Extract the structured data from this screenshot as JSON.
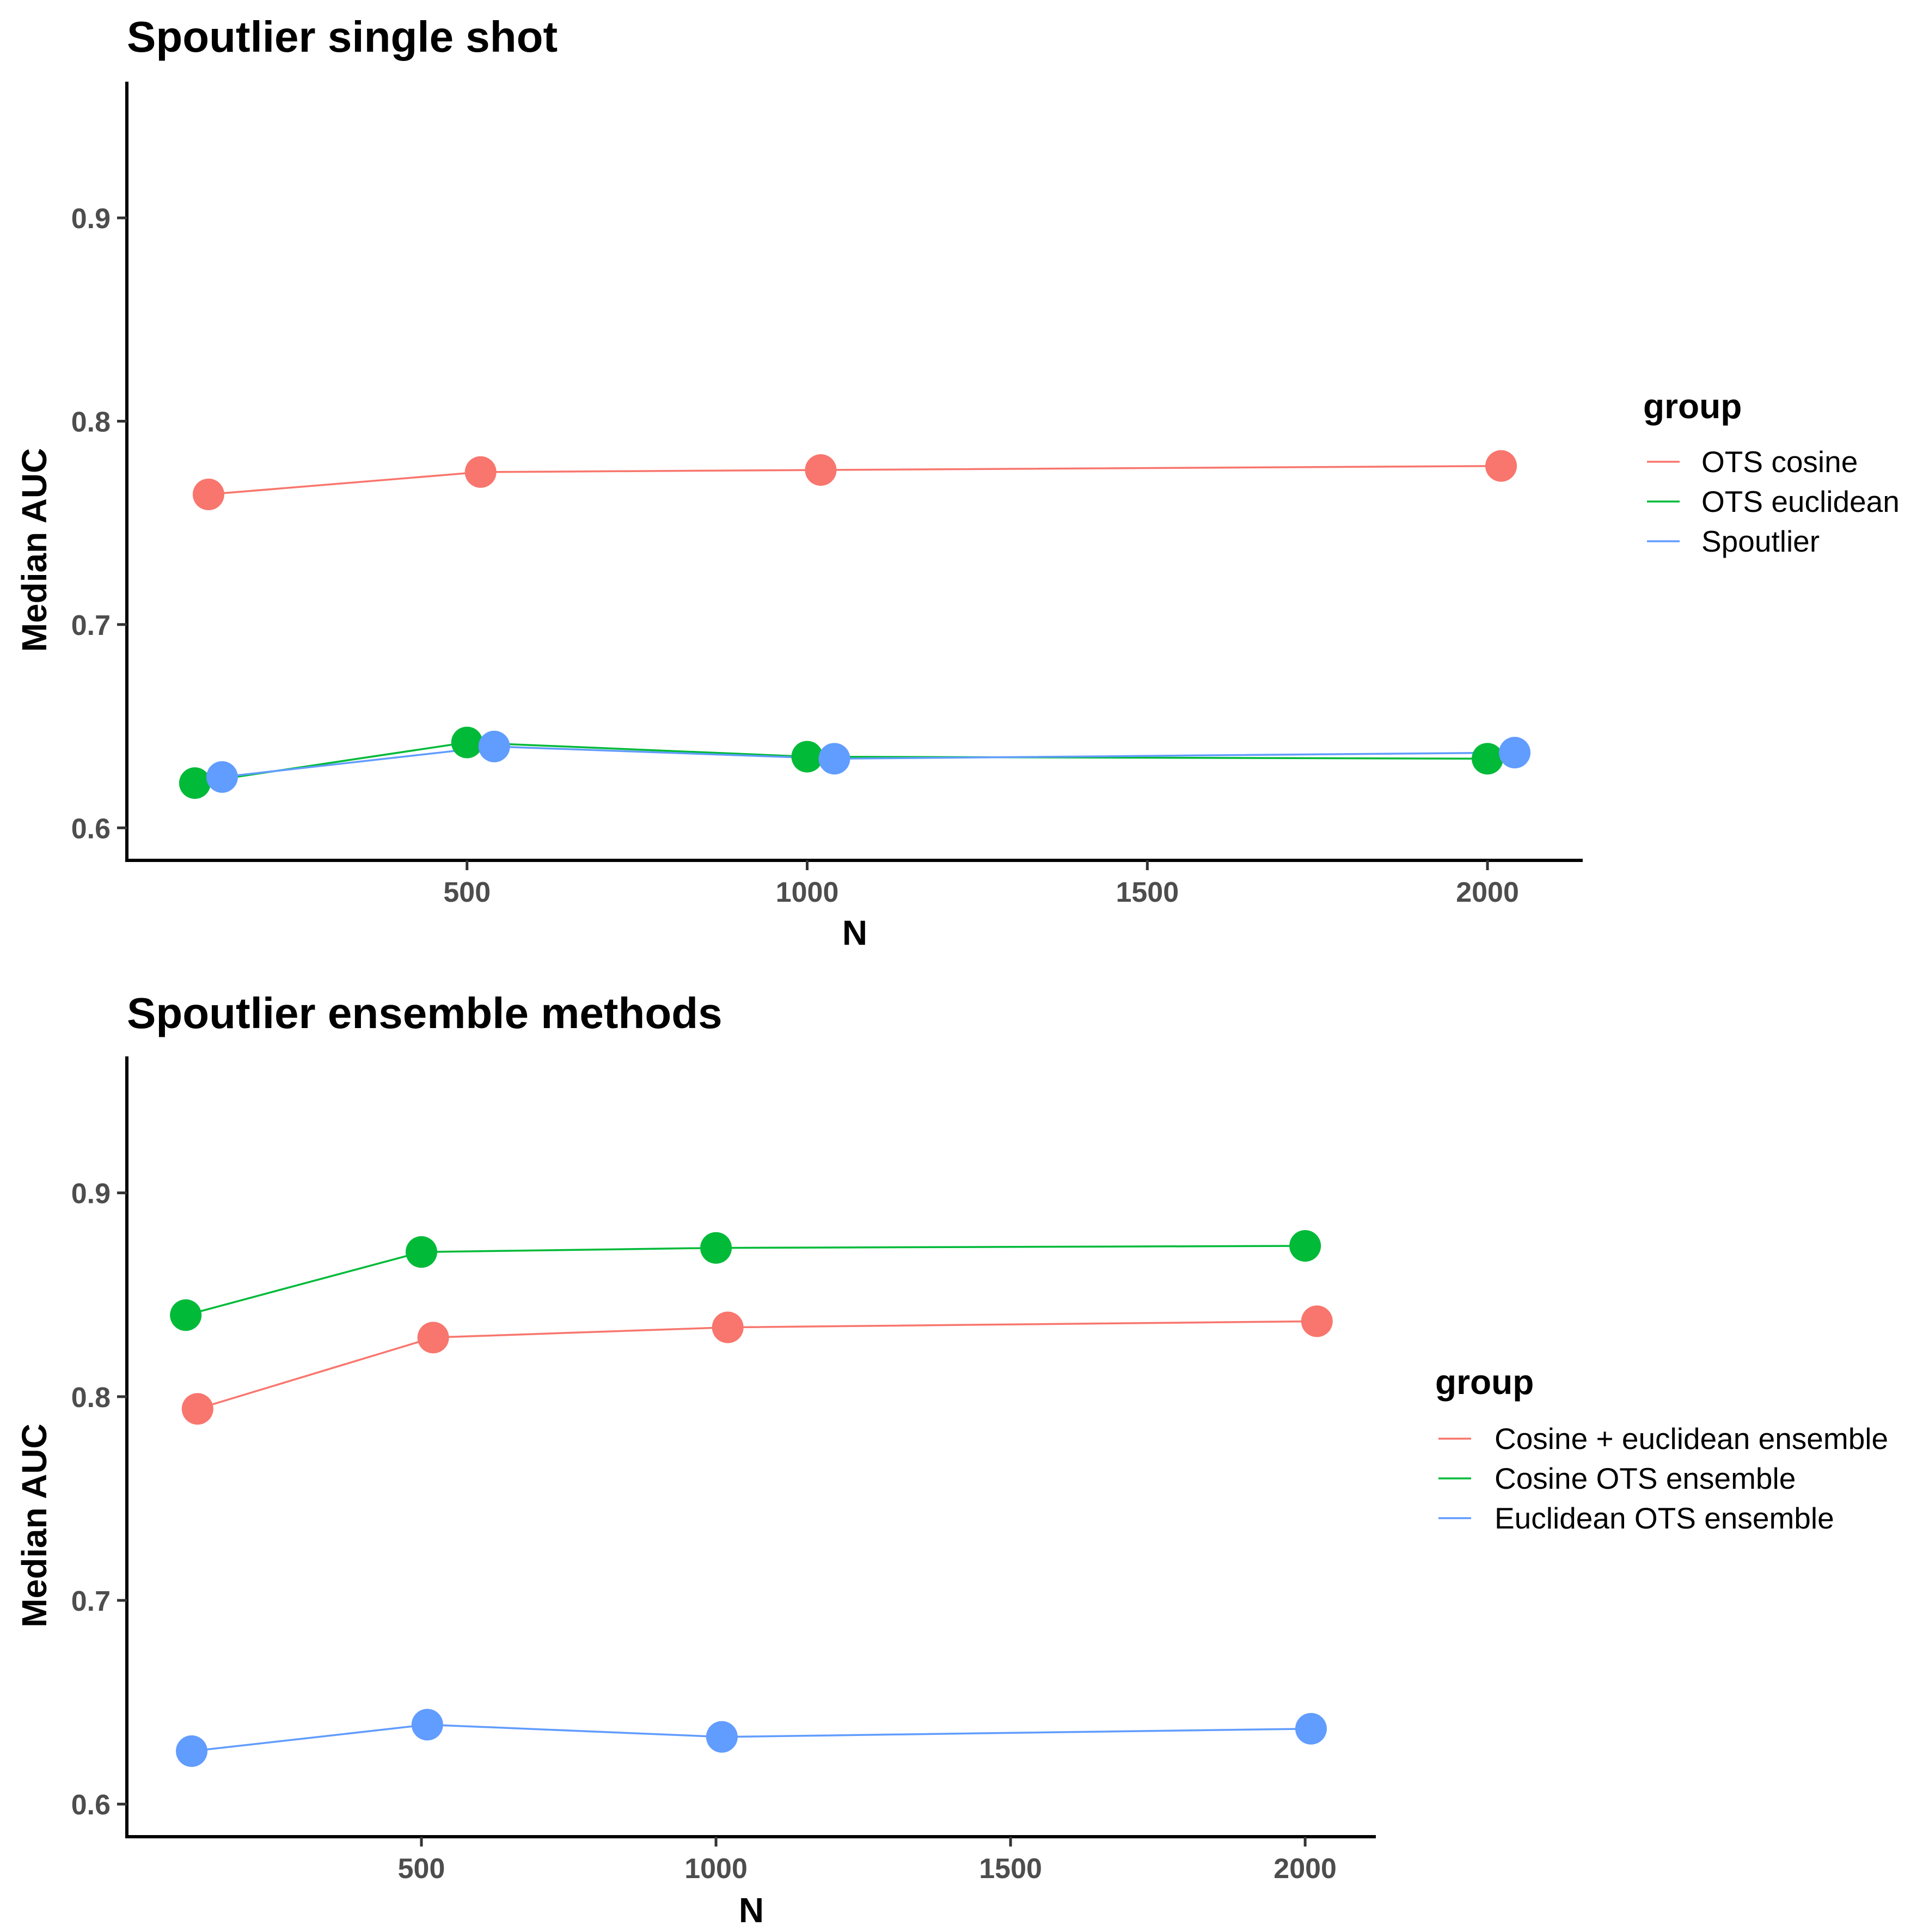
{
  "chart_data": [
    {
      "type": "line",
      "title": "Spoutlier single shot",
      "xlabel": "N",
      "ylabel": "Median AUC",
      "xticks": [
        500,
        1000,
        1500,
        2000
      ],
      "yticks": [
        0.6,
        0.7,
        0.8,
        0.9
      ],
      "xlim": [
        0,
        2140
      ],
      "ylim": [
        0.584,
        0.967
      ],
      "grid": false,
      "legend": {
        "title": "group",
        "position": "right"
      },
      "series": [
        {
          "name": "OTS cosine",
          "color": "#F8766D",
          "x": [
            120,
            520,
            1020,
            2020
          ],
          "y": [
            0.764,
            0.775,
            0.776,
            0.778
          ]
        },
        {
          "name": "OTS euclidean",
          "color": "#00BA38",
          "x": [
            100,
            500,
            1000,
            2000
          ],
          "y": [
            0.622,
            0.642,
            0.635,
            0.634
          ]
        },
        {
          "name": "Spoutlier",
          "color": "#619CFF",
          "x": [
            140,
            540,
            1040,
            2040
          ],
          "y": [
            0.625,
            0.64,
            0.634,
            0.637
          ]
        }
      ]
    },
    {
      "type": "line",
      "title": "Spoutlier ensemble methods",
      "xlabel": "N",
      "ylabel": "Median AUC",
      "xticks": [
        500,
        1000,
        1500,
        2000
      ],
      "yticks": [
        0.6,
        0.7,
        0.8,
        0.9
      ],
      "xlim": [
        0,
        2120
      ],
      "ylim": [
        0.584,
        0.967
      ],
      "grid": false,
      "legend": {
        "title": "group",
        "position": "right"
      },
      "series": [
        {
          "name": "Cosine + euclidean ensemble",
          "color": "#F8766D",
          "x": [
            120,
            520,
            1020,
            2020
          ],
          "y": [
            0.794,
            0.829,
            0.834,
            0.837
          ]
        },
        {
          "name": "Cosine OTS ensemble",
          "color": "#00BA38",
          "x": [
            100,
            500,
            1000,
            2000
          ],
          "y": [
            0.84,
            0.871,
            0.873,
            0.874
          ]
        },
        {
          "name": "Euclidean OTS ensemble",
          "color": "#619CFF",
          "x": [
            110,
            510,
            1010,
            2010
          ],
          "y": [
            0.626,
            0.639,
            0.633,
            0.637
          ]
        }
      ]
    }
  ]
}
